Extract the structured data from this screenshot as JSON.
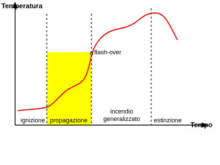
{
  "axes": {
    "y_label": "Temperatura",
    "x_label": "Tempo"
  },
  "annotation": "flash-over",
  "phases": [
    {
      "lines": [
        "ignizione"
      ]
    },
    {
      "lines": [
        "propagazione"
      ]
    },
    {
      "lines": [
        "incendio",
        "generalizzato"
      ]
    },
    {
      "lines": [
        "estinzione"
      ]
    }
  ]
}
